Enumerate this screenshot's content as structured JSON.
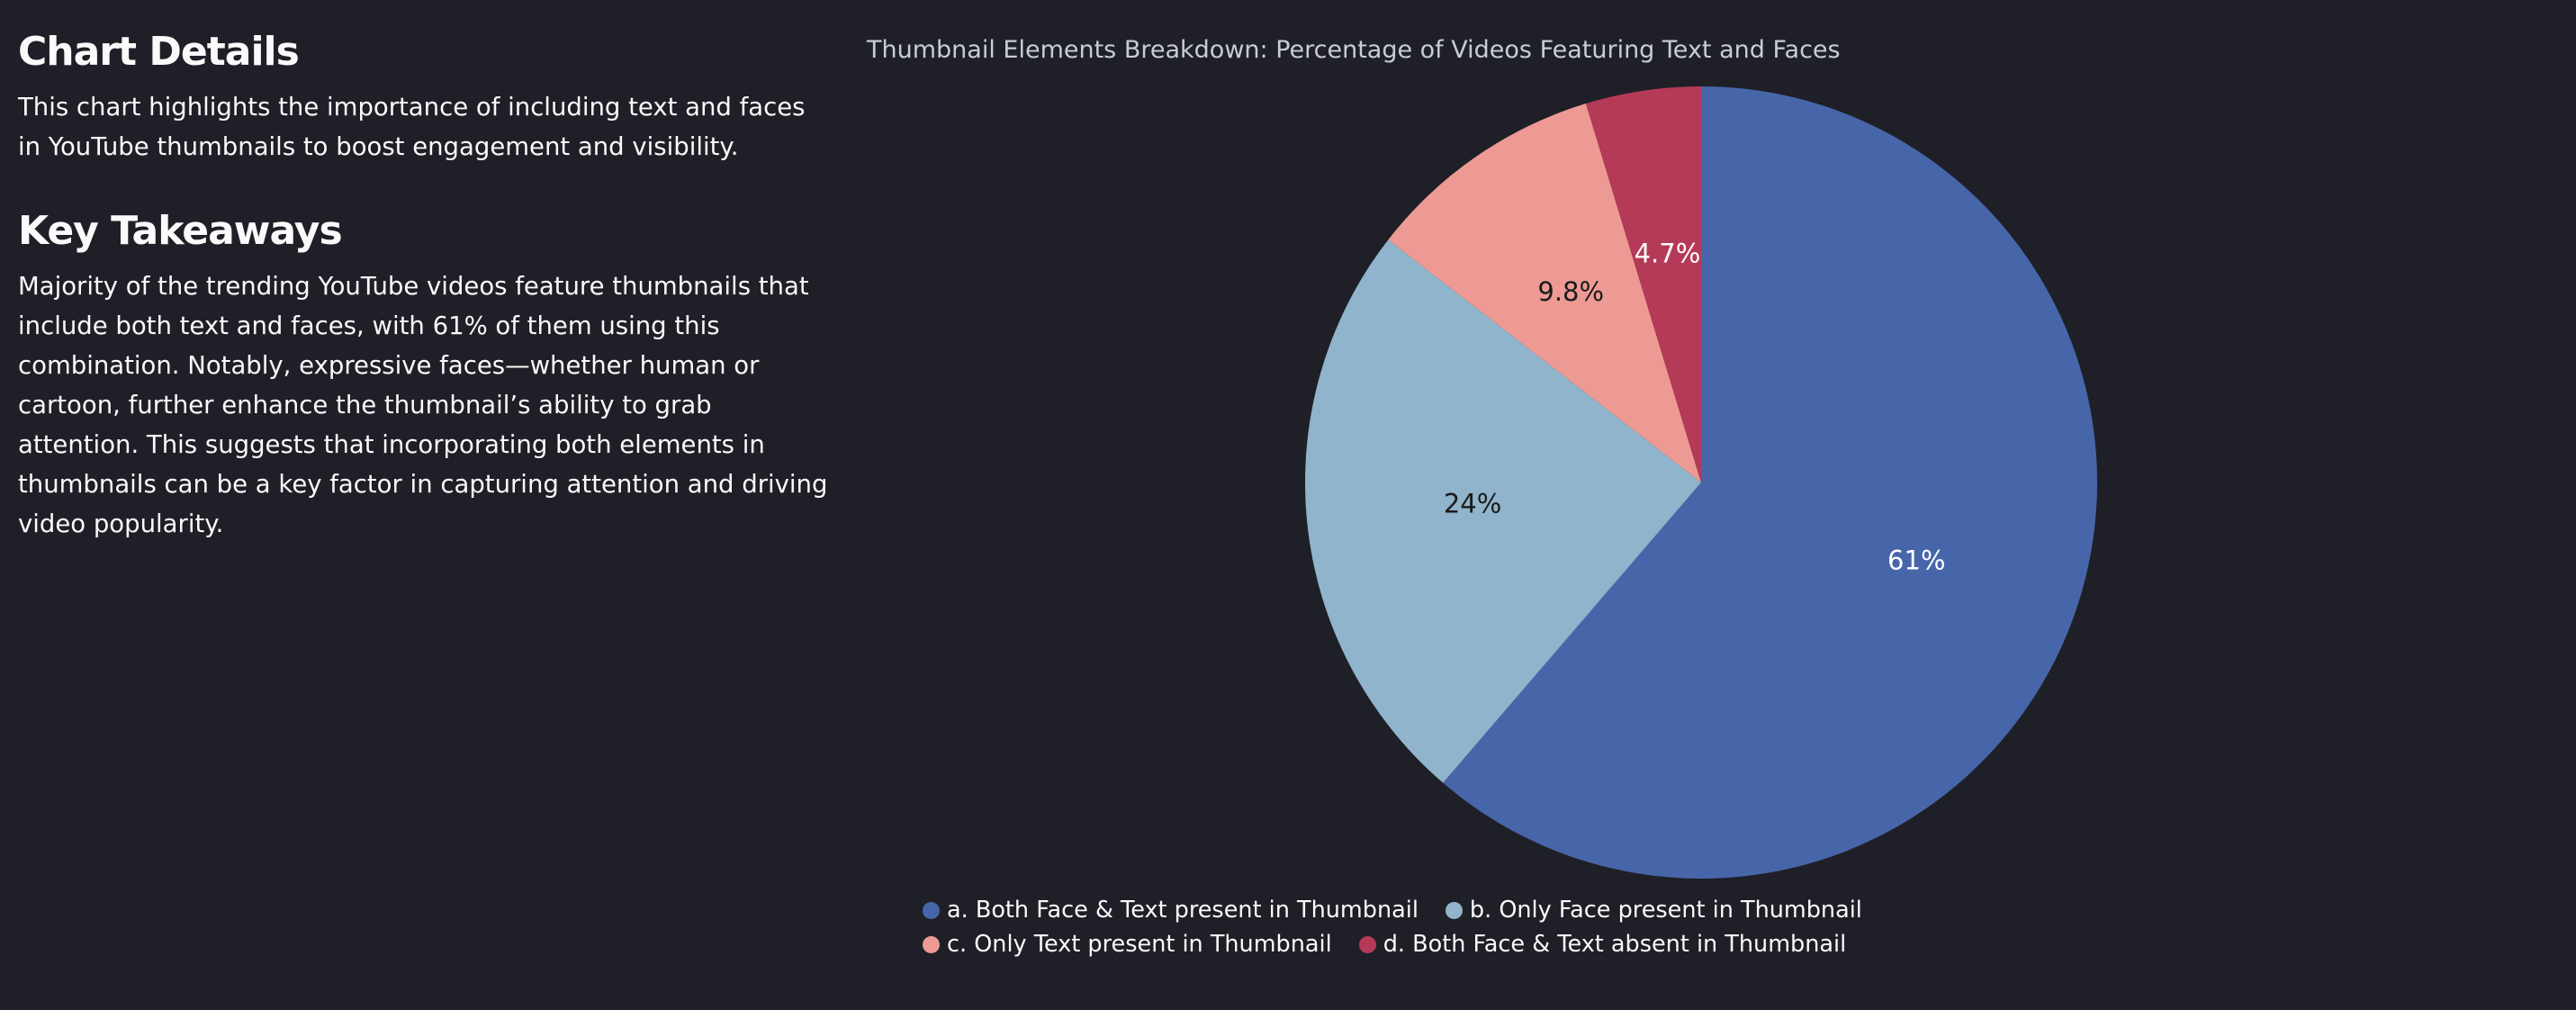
{
  "details": {
    "heading": "Chart Details",
    "text": "This chart highlights the importance of including text and faces in YouTube thumbnails to boost engagement and visibility."
  },
  "takeaways": {
    "heading": "Key Takeaways",
    "text": "Majority of the trending YouTube videos feature thumbnails that include both text and faces, with 61% of them using this combination. Notably, expressive faces—whether human or cartoon, further enhance the thumbnail’s ability to grab attention. This suggests that incorporating both elements in thumbnails can be a key factor in capturing attention and driving video popularity."
  },
  "chart_data": {
    "type": "pie",
    "title": "Thumbnail Elements Breakdown: Percentage of Videos Featuring Text and Faces",
    "categories": [
      "a. Both Face & Text present in Thumbnail",
      "b. Only Face present in Thumbnail",
      "c. Only Text present in Thumbnail",
      "d. Both Face & Text absent in Thumbnail"
    ],
    "values": [
      61.3,
      24.2,
      9.8,
      4.7
    ],
    "labels": [
      "61%",
      "24%",
      "9.8%",
      "4.7%"
    ],
    "colors": [
      "#4766aa",
      "#8fb4cb",
      "#ee9a94",
      "#b53a57"
    ],
    "label_colors": [
      "#ffffff",
      "#1a1a1a",
      "#1a1a1a",
      "#ffffff"
    ],
    "legend_position": "bottom",
    "start_angle": "12 o'clock",
    "direction": "clockwise"
  }
}
